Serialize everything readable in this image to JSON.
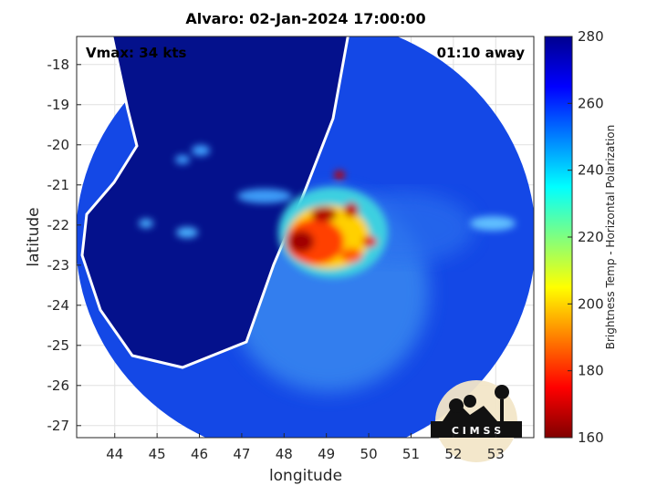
{
  "chart_data": {
    "type": "map",
    "title": "Alvaro: 02-Jan-2024 17:00:00",
    "annotations": [
      "Vmax: 34 kts",
      "01:10 away"
    ],
    "xlabel": "longitude",
    "ylabel": "latitude",
    "xlim": [
      43.1,
      53.9
    ],
    "xticks": [
      44,
      45,
      46,
      47,
      48,
      49,
      50,
      51,
      52,
      53
    ],
    "ylim": [
      -27.3,
      -17.3
    ],
    "yticks": [
      -27,
      -26,
      -25,
      -24,
      -23,
      -22,
      -21,
      -20,
      -19,
      -18
    ],
    "grid": true,
    "colorbar": {
      "label": "Brightness Temp - Horizontal Polarization",
      "lim": [
        160,
        280
      ],
      "ticks": [
        160,
        180,
        200,
        220,
        240,
        260,
        280
      ]
    }
  },
  "logo": "C I M S S"
}
